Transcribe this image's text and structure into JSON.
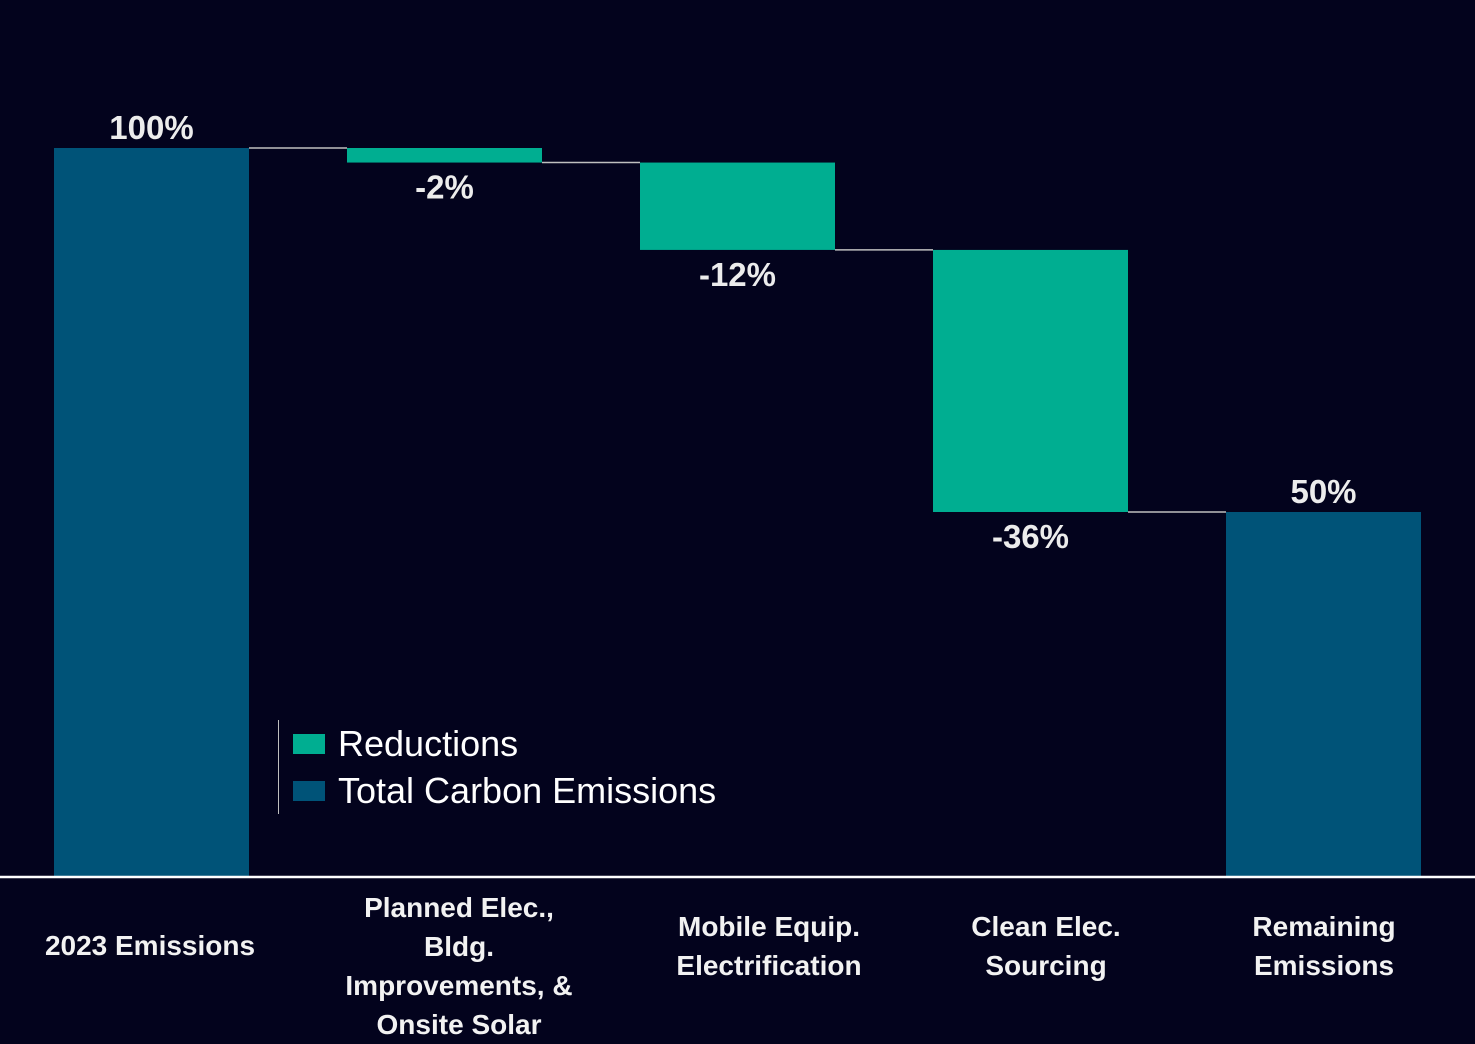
{
  "chart_data": {
    "type": "bar",
    "variant": "waterfall",
    "categories": [
      "2023 Emissions",
      "Planned Elec., Bldg. Improvements, & Onsite Solar",
      "Mobile Equip. Electrification",
      "Clean Elec. Sourcing",
      "Remaining Emissions"
    ],
    "category_lines": [
      [
        "2023 Emissions"
      ],
      [
        "Planned Elec., Bldg.",
        "Improvements, &",
        "Onsite Solar"
      ],
      [
        "Mobile Equip.",
        "Electrification"
      ],
      [
        "Clean Elec.",
        "Sourcing"
      ],
      [
        "Remaining",
        "Emissions"
      ]
    ],
    "values": [
      100,
      -2,
      -12,
      -36,
      50
    ],
    "kinds": [
      "total",
      "reduction",
      "reduction",
      "reduction",
      "total"
    ],
    "data_labels": [
      "100%",
      "-2%",
      "-12%",
      "-36%",
      "50%"
    ],
    "ylim": [
      0,
      100
    ],
    "grid": false,
    "legend": {
      "placement": "bottom-left",
      "entries": [
        {
          "label": "Reductions",
          "color": "#00ae91"
        },
        {
          "label": "Total Carbon Emissions",
          "color": "#005378"
        }
      ]
    }
  },
  "colors": {
    "background": "#03031d",
    "total": "#005378",
    "reduction": "#00ae91",
    "connector": "#bfbfbf",
    "axis": "#ffffff"
  }
}
